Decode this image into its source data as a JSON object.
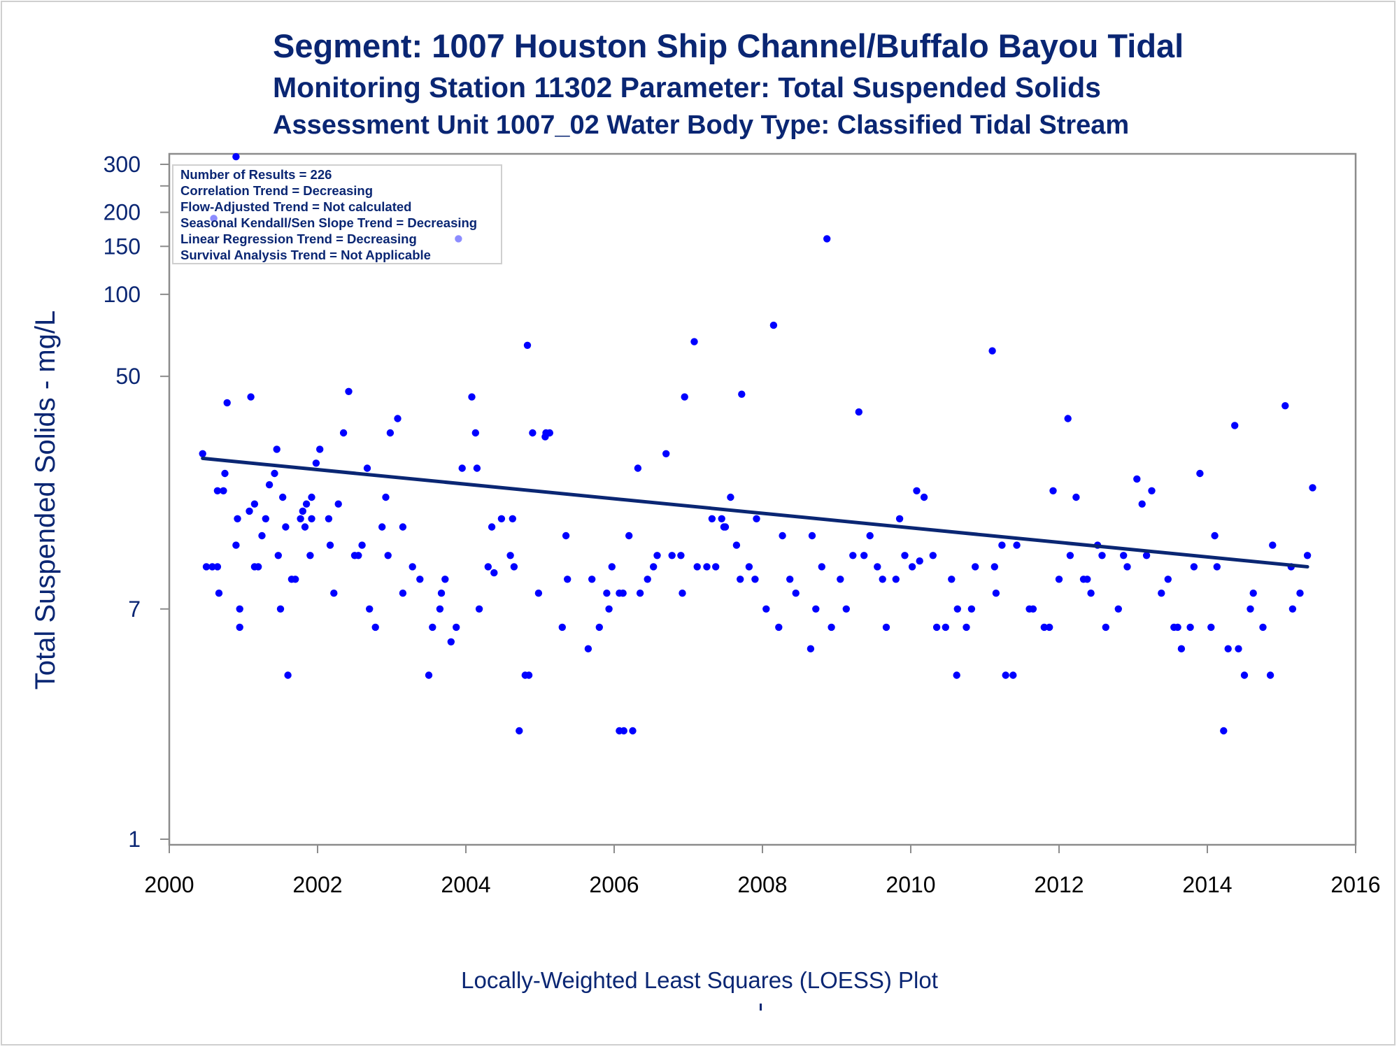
{
  "title": "Segment: 1007  Houston Ship Channel/Buffalo Bayou Tidal",
  "subtitle": "Monitoring Station 11302 Parameter: Total Suspended Solids",
  "subtitle2": "Assessment Unit 1007_02   Water Body Type: Classified Tidal Stream",
  "footer": "Locally-Weighted Least Squares (LOESS) Plot",
  "colors": {
    "text": "#0a2673",
    "points": "#0000ff",
    "trend_line": "#0a2673",
    "frame": "#8c8c8c"
  },
  "chart_data": {
    "type": "scatter",
    "title": "Segment: 1007  Houston Ship Channel/Buffalo Bayou Tidal",
    "xlabel": "",
    "ylabel": "Total Suspended Solids - mg/L",
    "xlim": [
      2000,
      2016
    ],
    "ylim": [
      1,
      300
    ],
    "yscale": "log",
    "x_ticks": [
      2000,
      2002,
      2004,
      2006,
      2008,
      2010,
      2012,
      2014,
      2016
    ],
    "y_ticks": [
      1,
      7,
      50,
      100,
      150,
      200,
      300
    ],
    "grid": false,
    "legend_position": "top-left",
    "annotations": [
      "Number of Results = 226",
      "Correlation Trend = Decreasing",
      "Flow-Adjusted Trend = Not calculated",
      "Seasonal Kendall/Sen Slope Trend = Decreasing",
      "Linear Regression Trend = Decreasing",
      "Survival Analysis Trend = Not Applicable"
    ],
    "trend_line": {
      "x": [
        2000.45,
        2015.35
      ],
      "y": [
        25,
        10
      ]
    },
    "points": [
      [
        2000.45,
        26
      ],
      [
        2000.5,
        10
      ],
      [
        2000.58,
        10
      ],
      [
        2000.6,
        190
      ],
      [
        2000.65,
        19
      ],
      [
        2000.65,
        10
      ],
      [
        2000.67,
        8
      ],
      [
        2000.73,
        19
      ],
      [
        2000.75,
        22
      ],
      [
        2000.78,
        40
      ],
      [
        2000.9,
        320
      ],
      [
        2000.9,
        12
      ],
      [
        2000.92,
        15
      ],
      [
        2000.95,
        7
      ],
      [
        2000.95,
        6
      ],
      [
        2001.08,
        16
      ],
      [
        2001.1,
        42
      ],
      [
        2001.15,
        10
      ],
      [
        2001.15,
        17
      ],
      [
        2001.2,
        10
      ],
      [
        2001.25,
        13
      ],
      [
        2001.3,
        15
      ],
      [
        2001.35,
        20
      ],
      [
        2001.42,
        22
      ],
      [
        2001.45,
        27
      ],
      [
        2001.47,
        11
      ],
      [
        2001.5,
        7
      ],
      [
        2001.53,
        18
      ],
      [
        2001.57,
        14
      ],
      [
        2001.6,
        4
      ],
      [
        2001.65,
        9
      ],
      [
        2001.7,
        9
      ],
      [
        2001.77,
        15
      ],
      [
        2001.8,
        16
      ],
      [
        2001.83,
        14
      ],
      [
        2001.85,
        17
      ],
      [
        2001.9,
        11
      ],
      [
        2001.92,
        18
      ],
      [
        2001.92,
        15
      ],
      [
        2001.98,
        24
      ],
      [
        2002.03,
        27
      ],
      [
        2002.15,
        15
      ],
      [
        2002.17,
        12
      ],
      [
        2002.22,
        8
      ],
      [
        2002.28,
        17
      ],
      [
        2002.35,
        31
      ],
      [
        2002.42,
        44
      ],
      [
        2002.5,
        11
      ],
      [
        2002.55,
        11
      ],
      [
        2002.6,
        12
      ],
      [
        2002.67,
        23
      ],
      [
        2002.7,
        7
      ],
      [
        2002.78,
        6
      ],
      [
        2002.87,
        14
      ],
      [
        2002.92,
        18
      ],
      [
        2002.95,
        11
      ],
      [
        2002.98,
        31
      ],
      [
        2003.08,
        35
      ],
      [
        2003.15,
        14
      ],
      [
        2003.15,
        8
      ],
      [
        2003.28,
        10
      ],
      [
        2003.38,
        9
      ],
      [
        2003.5,
        4
      ],
      [
        2003.55,
        6
      ],
      [
        2003.65,
        7
      ],
      [
        2003.67,
        8
      ],
      [
        2003.72,
        9
      ],
      [
        2003.8,
        5.3
      ],
      [
        2003.87,
        6
      ],
      [
        2003.9,
        160
      ],
      [
        2003.95,
        23
      ],
      [
        2004.08,
        42
      ],
      [
        2004.13,
        31
      ],
      [
        2004.15,
        23
      ],
      [
        2004.18,
        7
      ],
      [
        2004.3,
        10
      ],
      [
        2004.35,
        14
      ],
      [
        2004.38,
        9.5
      ],
      [
        2004.48,
        15
      ],
      [
        2004.6,
        11
      ],
      [
        2004.63,
        15
      ],
      [
        2004.65,
        10
      ],
      [
        2004.72,
        2.5
      ],
      [
        2004.8,
        4
      ],
      [
        2004.83,
        65
      ],
      [
        2004.85,
        4
      ],
      [
        2004.9,
        31
      ],
      [
        2004.98,
        8
      ],
      [
        2005.07,
        30
      ],
      [
        2005.08,
        31
      ],
      [
        2005.13,
        31
      ],
      [
        2005.3,
        6
      ],
      [
        2005.35,
        13
      ],
      [
        2005.37,
        9
      ],
      [
        2005.65,
        5
      ],
      [
        2005.7,
        9
      ],
      [
        2005.8,
        6
      ],
      [
        2005.9,
        8
      ],
      [
        2005.93,
        7
      ],
      [
        2005.97,
        10
      ],
      [
        2006.07,
        2.5
      ],
      [
        2006.07,
        8
      ],
      [
        2006.12,
        8
      ],
      [
        2006.13,
        2.5
      ],
      [
        2006.2,
        13
      ],
      [
        2006.25,
        2.5
      ],
      [
        2006.32,
        23
      ],
      [
        2006.35,
        8
      ],
      [
        2006.45,
        9
      ],
      [
        2006.53,
        10
      ],
      [
        2006.58,
        11
      ],
      [
        2006.7,
        26
      ],
      [
        2006.78,
        11
      ],
      [
        2006.9,
        11
      ],
      [
        2006.92,
        8
      ],
      [
        2006.95,
        42
      ],
      [
        2007.08,
        67
      ],
      [
        2007.12,
        10
      ],
      [
        2007.25,
        10
      ],
      [
        2007.32,
        15
      ],
      [
        2007.37,
        10
      ],
      [
        2007.45,
        15
      ],
      [
        2007.48,
        14
      ],
      [
        2007.5,
        14
      ],
      [
        2007.57,
        18
      ],
      [
        2007.65,
        12
      ],
      [
        2007.7,
        9
      ],
      [
        2007.72,
        43
      ],
      [
        2007.82,
        10
      ],
      [
        2007.9,
        9
      ],
      [
        2007.92,
        15
      ],
      [
        2008.05,
        7
      ],
      [
        2008.15,
        77
      ],
      [
        2008.22,
        6
      ],
      [
        2008.27,
        13
      ],
      [
        2008.37,
        9
      ],
      [
        2008.45,
        8
      ],
      [
        2008.65,
        5
      ],
      [
        2008.67,
        13
      ],
      [
        2008.72,
        7
      ],
      [
        2008.8,
        10
      ],
      [
        2008.87,
        160
      ],
      [
        2008.93,
        6
      ],
      [
        2009.05,
        9
      ],
      [
        2009.13,
        7
      ],
      [
        2009.22,
        11
      ],
      [
        2009.3,
        37
      ],
      [
        2009.37,
        11
      ],
      [
        2009.45,
        13
      ],
      [
        2009.55,
        10
      ],
      [
        2009.62,
        9
      ],
      [
        2009.67,
        6
      ],
      [
        2009.8,
        9
      ],
      [
        2009.85,
        15
      ],
      [
        2009.92,
        11
      ],
      [
        2010.02,
        10
      ],
      [
        2010.08,
        19
      ],
      [
        2010.12,
        10.5
      ],
      [
        2010.18,
        18
      ],
      [
        2010.3,
        11
      ],
      [
        2010.35,
        6
      ],
      [
        2010.47,
        6
      ],
      [
        2010.55,
        9
      ],
      [
        2010.62,
        4
      ],
      [
        2010.63,
        7
      ],
      [
        2010.75,
        6
      ],
      [
        2010.82,
        7
      ],
      [
        2010.87,
        10
      ],
      [
        2011.1,
        62
      ],
      [
        2011.13,
        10
      ],
      [
        2011.15,
        8
      ],
      [
        2011.23,
        12
      ],
      [
        2011.28,
        4
      ],
      [
        2011.38,
        4
      ],
      [
        2011.43,
        12
      ],
      [
        2011.6,
        7
      ],
      [
        2011.65,
        7
      ],
      [
        2011.8,
        6
      ],
      [
        2011.87,
        6
      ],
      [
        2011.92,
        19
      ],
      [
        2012.0,
        9
      ],
      [
        2012.12,
        35
      ],
      [
        2012.15,
        11
      ],
      [
        2012.23,
        18
      ],
      [
        2012.33,
        9
      ],
      [
        2012.38,
        9
      ],
      [
        2012.43,
        8
      ],
      [
        2012.52,
        12
      ],
      [
        2012.58,
        11
      ],
      [
        2012.63,
        6
      ],
      [
        2012.8,
        7
      ],
      [
        2012.87,
        11
      ],
      [
        2012.92,
        10
      ],
      [
        2013.05,
        21
      ],
      [
        2013.12,
        17
      ],
      [
        2013.18,
        11
      ],
      [
        2013.25,
        19
      ],
      [
        2013.38,
        8
      ],
      [
        2013.47,
        9
      ],
      [
        2013.55,
        6
      ],
      [
        2013.6,
        6
      ],
      [
        2013.65,
        5
      ],
      [
        2013.77,
        6
      ],
      [
        2013.82,
        10
      ],
      [
        2013.9,
        22
      ],
      [
        2014.05,
        6
      ],
      [
        2014.1,
        13
      ],
      [
        2014.13,
        10
      ],
      [
        2014.22,
        2.5
      ],
      [
        2014.28,
        5
      ],
      [
        2014.37,
        33
      ],
      [
        2014.42,
        5
      ],
      [
        2014.5,
        4
      ],
      [
        2014.58,
        7
      ],
      [
        2014.62,
        8
      ],
      [
        2014.75,
        6
      ],
      [
        2014.85,
        4
      ],
      [
        2014.88,
        12
      ],
      [
        2015.05,
        39
      ],
      [
        2015.13,
        10
      ],
      [
        2015.15,
        7
      ],
      [
        2015.25,
        8
      ],
      [
        2015.35,
        11
      ],
      [
        2015.42,
        19.5
      ]
    ]
  }
}
